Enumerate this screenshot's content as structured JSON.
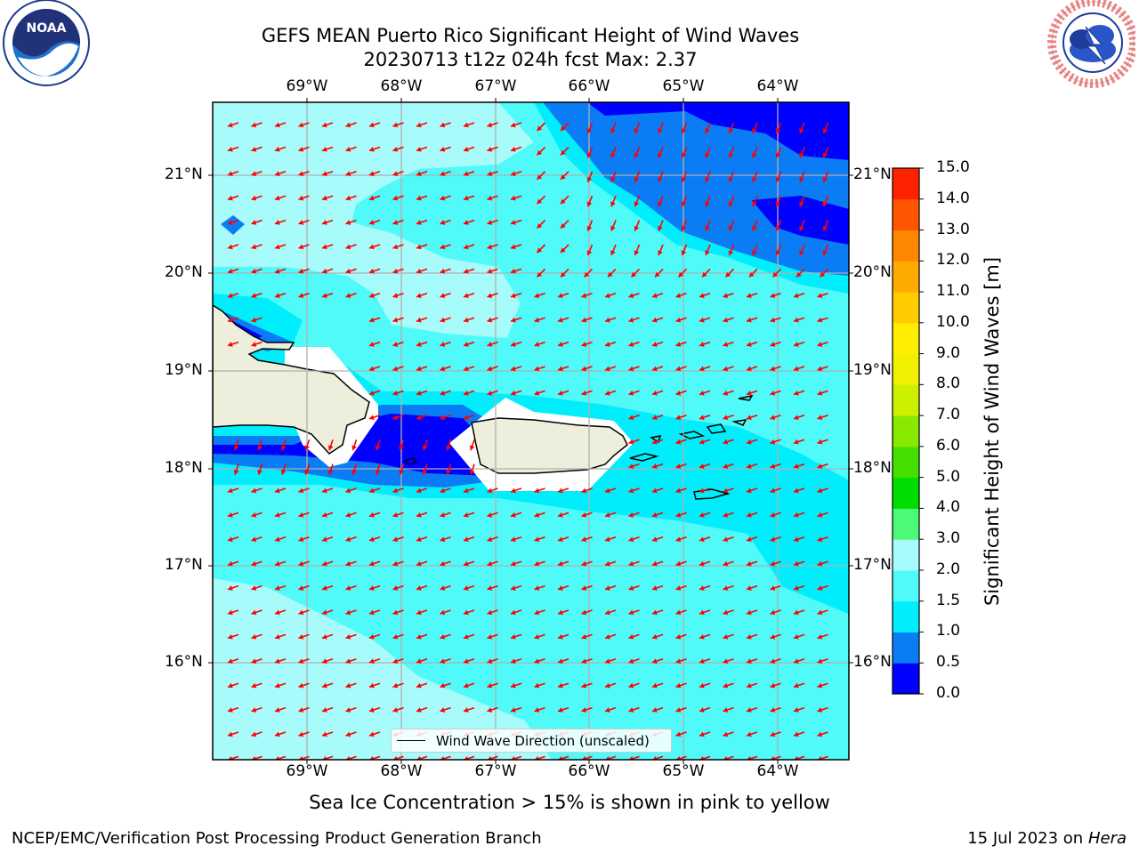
{
  "header": {
    "title_line1": "GEFS MEAN Puerto Rico Significant Height of Wind Waves",
    "title_line2": "20230713 t12z 024h fcst   Max: 2.37"
  },
  "logos": {
    "left": {
      "name": "noaa-logo",
      "text": "NOAA",
      "ring_text": "NATIONAL OCEANIC AND ATMOSPHERIC ADMINISTRATION · U.S. DEPARTMENT OF COMMERCE"
    },
    "right": {
      "name": "nws-logo",
      "ring_text": "NATIONAL WEATHER SERVICE"
    }
  },
  "map": {
    "lon_labels": [
      "69°W",
      "68°W",
      "67°W",
      "66°W",
      "65°W",
      "64°W"
    ],
    "lat_labels": [
      "21°N",
      "20°N",
      "19°N",
      "18°N",
      "17°N",
      "16°N"
    ],
    "legend_label": "Wind Wave Direction (unscaled)",
    "colors": {
      "band_0_0_5": "#0000ff",
      "band_0_5_1_0": "#0a7df5",
      "band_1_0_1_5": "#00eefc",
      "band_1_5_2_0": "#4ffaf9",
      "band_2_0_3_0": "#a7fbfb",
      "land": "#eeeedc",
      "arrow": "#ff0000",
      "grid": "#b0b0b0"
    }
  },
  "colorbar": {
    "label": "Significant Height of Wind Waves [m]",
    "ticks": [
      "15.0",
      "14.0",
      "13.0",
      "12.0",
      "11.0",
      "10.0",
      "9.0",
      "8.0",
      "7.0",
      "6.0",
      "5.0",
      "4.0",
      "3.0",
      "2.0",
      "1.5",
      "1.0",
      "0.5",
      "0.0"
    ],
    "colors": [
      "#0000ff",
      "#0a7df5",
      "#00eefc",
      "#4ffaf9",
      "#a7fbfb",
      "#4dfa78",
      "#00dd00",
      "#44e000",
      "#88e800",
      "#ccf000",
      "#f0f000",
      "#ffee00",
      "#ffcc00",
      "#ffaa00",
      "#ff8800",
      "#ff5500",
      "#ff2200"
    ]
  },
  "note": "Sea Ice Concentration > 15% is shown in pink to yellow",
  "footer": {
    "left": "NCEP/EMC/Verification Post Processing Product Generation Branch",
    "right_prefix": "15 Jul 2023 on ",
    "right_host": "Hera"
  }
}
